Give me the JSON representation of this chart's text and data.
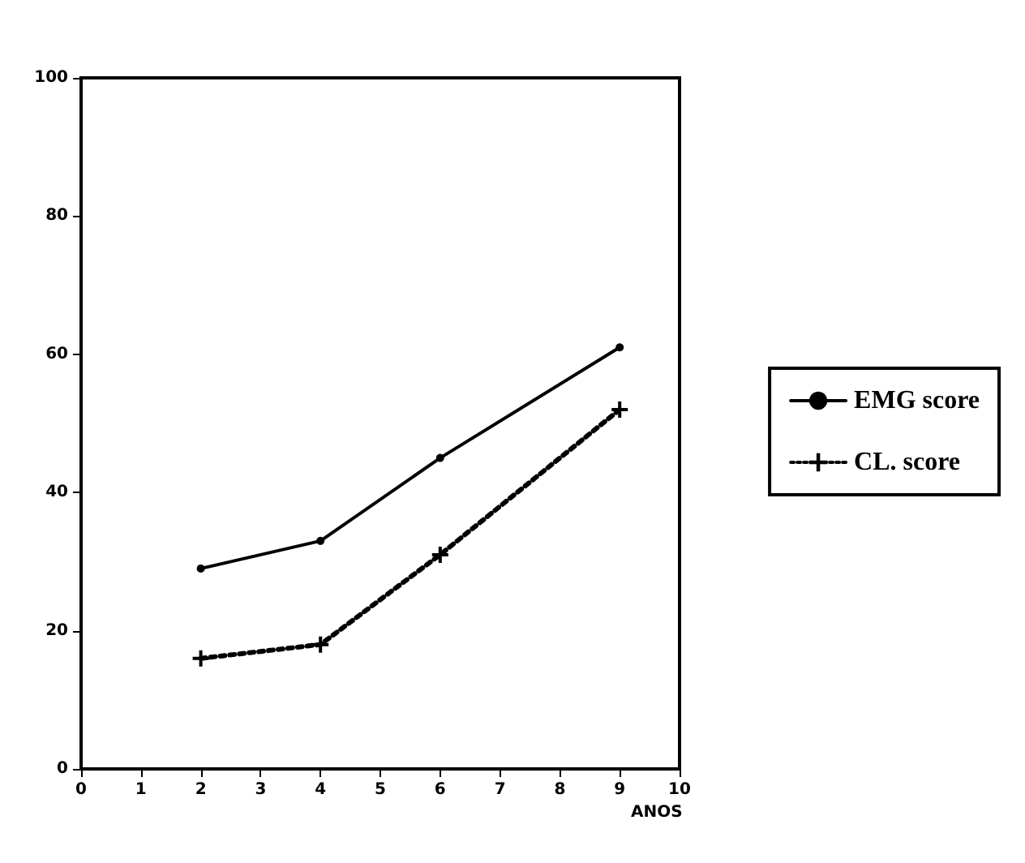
{
  "chart_data": {
    "type": "line",
    "xlabel": "ANOS",
    "x": [
      2,
      4,
      6,
      9
    ],
    "series": [
      {
        "name": "EMG score",
        "color": "#000000",
        "values": [
          29,
          33,
          45,
          61
        ],
        "marker": "circle",
        "line_style": "solid"
      },
      {
        "name": "CL. score",
        "color": "#000000",
        "values": [
          16,
          18,
          31,
          52
        ],
        "marker": "cross",
        "line_style": "dotted"
      }
    ],
    "xlim": [
      0,
      10
    ],
    "xticks": [
      0,
      1,
      2,
      3,
      4,
      5,
      6,
      7,
      8,
      9,
      10
    ],
    "ylim": [
      0,
      100
    ],
    "yticks": [
      0,
      20,
      40,
      60,
      80,
      100
    ],
    "grid": false,
    "legend": "right"
  }
}
